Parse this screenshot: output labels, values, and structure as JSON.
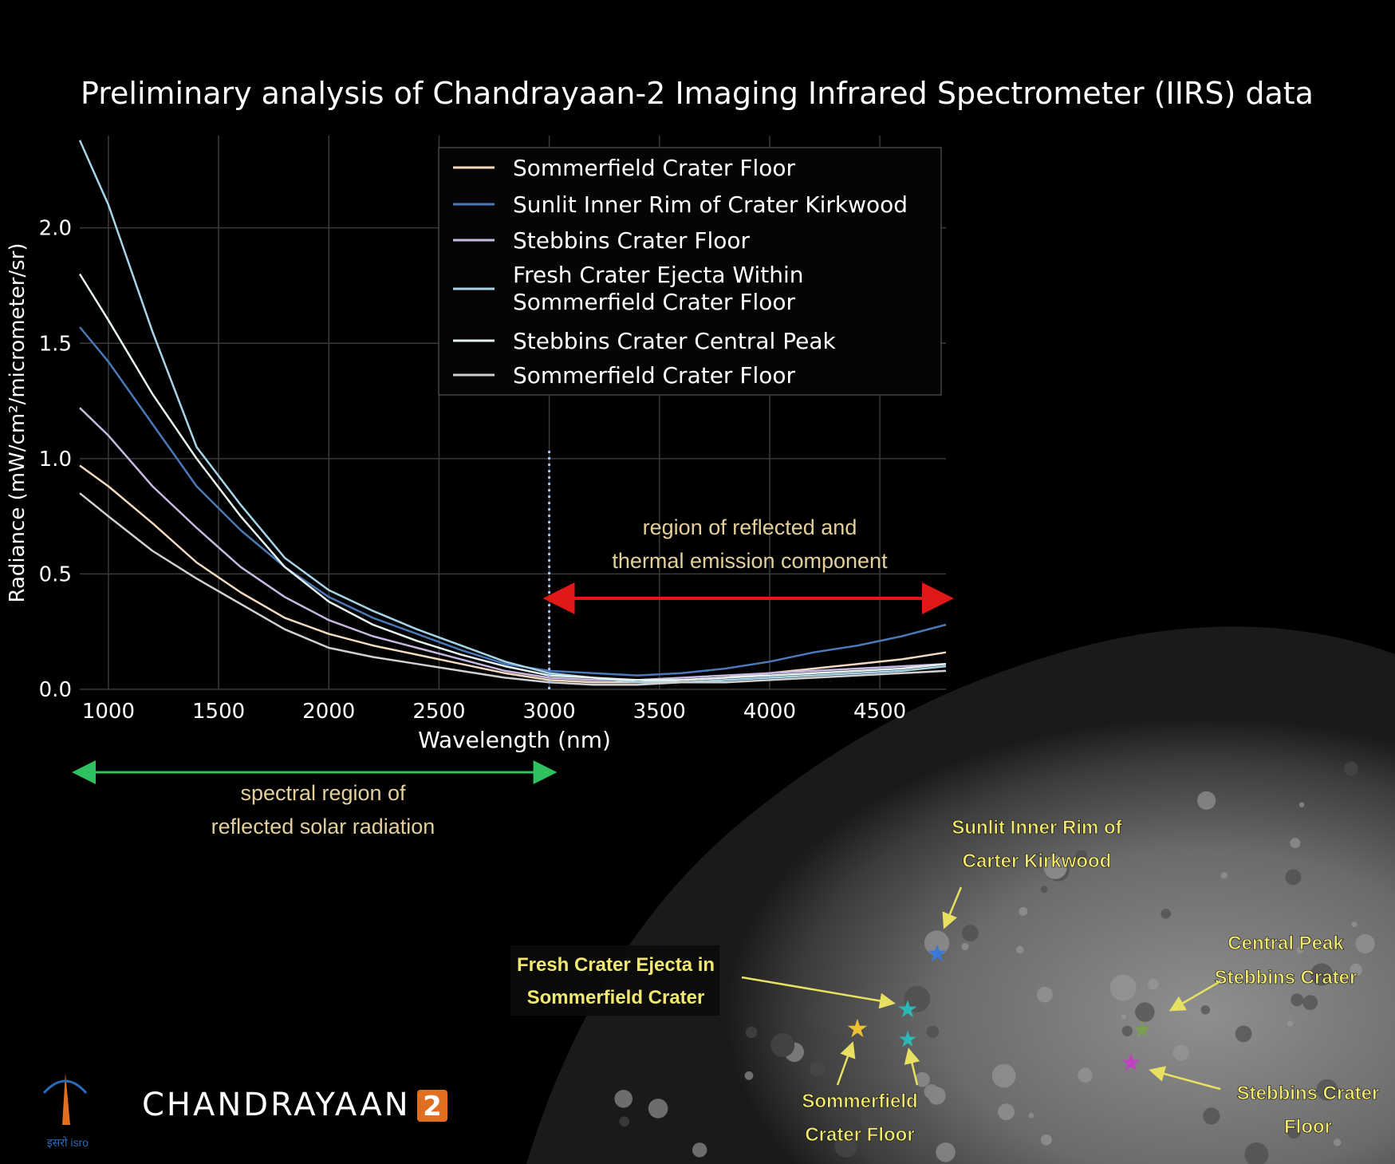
{
  "chart_data": {
    "type": "line",
    "title": "Preliminary analysis of Chandrayaan-2 Imaging Infrared Spectrometer (IIRS) data",
    "xlabel": "Wavelength (nm)",
    "ylabel": "Radiance (mW/cm²/micrometer/sr)",
    "xlim": [
      870,
      4800
    ],
    "ylim": [
      0,
      2.4
    ],
    "x_ticks": [
      "1000",
      "1500",
      "2000",
      "2500",
      "3000",
      "3500",
      "4000",
      "4500"
    ],
    "y_ticks": [
      "0.0",
      "0.5",
      "1.0",
      "1.5",
      "2.0"
    ],
    "grid": true,
    "legend_position": "top-center",
    "x": [
      870,
      1000,
      1200,
      1400,
      1600,
      1800,
      2000,
      2200,
      2400,
      2600,
      2800,
      3000,
      3200,
      3400,
      3600,
      3800,
      4000,
      4200,
      4400,
      4600,
      4800
    ],
    "series": [
      {
        "name": "Sommerfield Crater Floor",
        "color": "#f2d9c0",
        "values": [
          0.97,
          0.88,
          0.72,
          0.55,
          0.42,
          0.31,
          0.24,
          0.19,
          0.15,
          0.11,
          0.07,
          0.04,
          0.03,
          0.03,
          0.04,
          0.05,
          0.07,
          0.09,
          0.11,
          0.13,
          0.16
        ]
      },
      {
        "name": "Sunlit Inner Rim of Crater Kirkwood",
        "color": "#4a78b8",
        "values": [
          1.57,
          1.42,
          1.15,
          0.88,
          0.69,
          0.53,
          0.4,
          0.31,
          0.24,
          0.17,
          0.11,
          0.08,
          0.07,
          0.06,
          0.07,
          0.09,
          0.12,
          0.16,
          0.19,
          0.23,
          0.28
        ]
      },
      {
        "name": "Stebbins Crater Floor",
        "color": "#c7b8e0",
        "values": [
          1.22,
          1.1,
          0.88,
          0.7,
          0.53,
          0.4,
          0.3,
          0.23,
          0.18,
          0.13,
          0.08,
          0.05,
          0.04,
          0.04,
          0.05,
          0.06,
          0.07,
          0.08,
          0.09,
          0.1,
          0.11
        ]
      },
      {
        "name": "Fresh Crater Ejecta Within Sommerfield Crater Floor",
        "color": "#a8d4e8",
        "values": [
          2.38,
          2.1,
          1.55,
          1.05,
          0.8,
          0.57,
          0.43,
          0.34,
          0.26,
          0.19,
          0.12,
          0.07,
          0.05,
          0.03,
          0.03,
          0.04,
          0.05,
          0.06,
          0.07,
          0.08,
          0.1
        ]
      },
      {
        "name": "Stebbins Crater Central Peak",
        "color": "#e6f2f0",
        "values": [
          1.8,
          1.6,
          1.28,
          1.0,
          0.75,
          0.53,
          0.38,
          0.28,
          0.21,
          0.15,
          0.1,
          0.06,
          0.05,
          0.04,
          0.04,
          0.05,
          0.06,
          0.07,
          0.08,
          0.09,
          0.11
        ]
      },
      {
        "name": "Sommerfield Crater Floor",
        "color": "#d0d0d0",
        "values": [
          0.85,
          0.75,
          0.6,
          0.48,
          0.37,
          0.26,
          0.18,
          0.14,
          0.11,
          0.08,
          0.05,
          0.03,
          0.02,
          0.02,
          0.03,
          0.03,
          0.04,
          0.05,
          0.06,
          0.07,
          0.08
        ]
      }
    ],
    "annotations": {
      "reflected_thermal": {
        "lines": [
          "region of reflected and",
          "thermal emission component"
        ],
        "x_start": 3000,
        "x_end": 4800,
        "color": "#e01818"
      },
      "reflected_solar": {
        "lines": [
          "spectral region of",
          "reflected solar radiation"
        ],
        "x_start": 870,
        "x_end": 3000,
        "color": "#2fc060"
      },
      "divider_x": 3000
    }
  },
  "moon_labels": {
    "sunlit_rim": [
      "Sunlit Inner Rim of",
      "Carter Kirkwood"
    ],
    "fresh_ejecta": [
      "Fresh Crater Ejecta in",
      "Sommerfield Crater"
    ],
    "central_peak": [
      "Central Peak",
      "Stebbins Crater"
    ],
    "sommerfield_floor": [
      "Sommerfield",
      "Crater Floor"
    ],
    "stebbins_floor": [
      "Stebbins Crater",
      "Floor"
    ]
  },
  "logo_text": "CHANDRAYAAN",
  "logo_number": "2",
  "isro_caption": "इसरो isro"
}
